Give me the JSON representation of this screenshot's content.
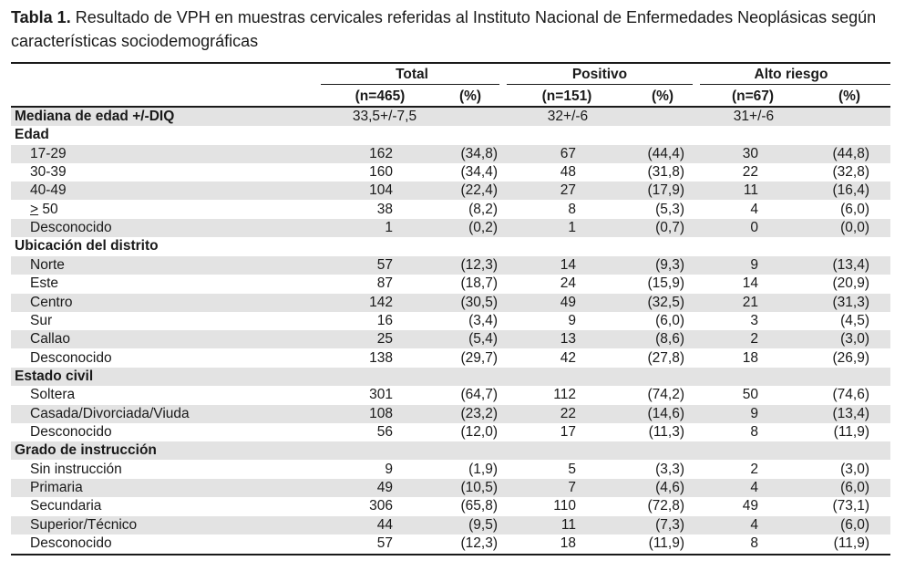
{
  "caption": {
    "label": "Tabla 1.",
    "text": " Resultado de VPH en muestras cervicales referidas al Instituto Nacional de Enfermedades Neoplásicas según características sociodemográficas"
  },
  "header": {
    "groups": [
      "Total",
      "Positivo",
      "Alto riesgo"
    ],
    "n": [
      "(n=465)",
      "(n=151)",
      "(n=67)"
    ],
    "pct": "(%)"
  },
  "median": {
    "label": "Mediana de edad +/-DIQ",
    "values": [
      "33,5+/-7,5",
      "32+/-6",
      "31+/-6"
    ]
  },
  "sections": [
    {
      "title": "Edad",
      "rows": [
        {
          "label": "17-29",
          "v": [
            "162",
            "(34,8)",
            "67",
            "(44,4)",
            "30",
            "(44,8)"
          ]
        },
        {
          "label": "30-39",
          "v": [
            "160",
            "(34,4)",
            "48",
            "(31,8)",
            "22",
            "(32,8)"
          ]
        },
        {
          "label": "40-49",
          "v": [
            "104",
            "(22,4)",
            "27",
            "(17,9)",
            "11",
            "(16,4)"
          ]
        },
        {
          "label": "> 50",
          "v": [
            "38",
            "(8,2)",
            "8",
            "(5,3)",
            "4",
            "(6,0)"
          ]
        },
        {
          "label": "Desconocido",
          "v": [
            "1",
            "(0,2)",
            "1",
            "(0,7)",
            "0",
            "(0,0)"
          ]
        }
      ]
    },
    {
      "title": "Ubicación del distrito",
      "rows": [
        {
          "label": "Norte",
          "v": [
            "57",
            "(12,3)",
            "14",
            "(9,3)",
            "9",
            "(13,4)"
          ]
        },
        {
          "label": "Este",
          "v": [
            "87",
            "(18,7)",
            "24",
            "(15,9)",
            "14",
            "(20,9)"
          ]
        },
        {
          "label": "Centro",
          "v": [
            "142",
            "(30,5)",
            "49",
            "(32,5)",
            "21",
            "(31,3)"
          ]
        },
        {
          "label": "Sur",
          "v": [
            "16",
            "(3,4)",
            "9",
            "(6,0)",
            "3",
            "(4,5)"
          ]
        },
        {
          "label": "Callao",
          "v": [
            "25",
            "(5,4)",
            "13",
            "(8,6)",
            "2",
            "(3,0)"
          ]
        },
        {
          "label": "Desconocido",
          "v": [
            "138",
            "(29,7)",
            "42",
            "(27,8)",
            "18",
            "(26,9)"
          ]
        }
      ]
    },
    {
      "title": "Estado civil",
      "rows": [
        {
          "label": "Soltera",
          "v": [
            "301",
            "(64,7)",
            "112",
            "(74,2)",
            "50",
            "(74,6)"
          ]
        },
        {
          "label": "Casada/Divorciada/Viuda",
          "v": [
            "108",
            "(23,2)",
            "22",
            "(14,6)",
            "9",
            "(13,4)"
          ]
        },
        {
          "label": "Desconocido",
          "v": [
            "56",
            "(12,0)",
            "17",
            "(11,3)",
            "8",
            "(11,9)"
          ]
        }
      ]
    },
    {
      "title": "Grado de instrucción",
      "rows": [
        {
          "label": "Sin instrucción",
          "v": [
            "9",
            "(1,9)",
            "5",
            "(3,3)",
            "2",
            "(3,0)"
          ]
        },
        {
          "label": "Primaria",
          "v": [
            "49",
            "(10,5)",
            "7",
            "(4,6)",
            "4",
            "(6,0)"
          ]
        },
        {
          "label": "Secundaria",
          "v": [
            "306",
            "(65,8)",
            "110",
            "(72,8)",
            "49",
            "(73,1)"
          ]
        },
        {
          "label": "Superior/Técnico",
          "v": [
            "44",
            "(9,5)",
            "11",
            "(7,3)",
            "4",
            "(6,0)"
          ]
        },
        {
          "label": "Desconocido",
          "v": [
            "57",
            "(12,3)",
            "18",
            "(11,9)",
            "8",
            "(11,9)"
          ]
        }
      ]
    }
  ]
}
